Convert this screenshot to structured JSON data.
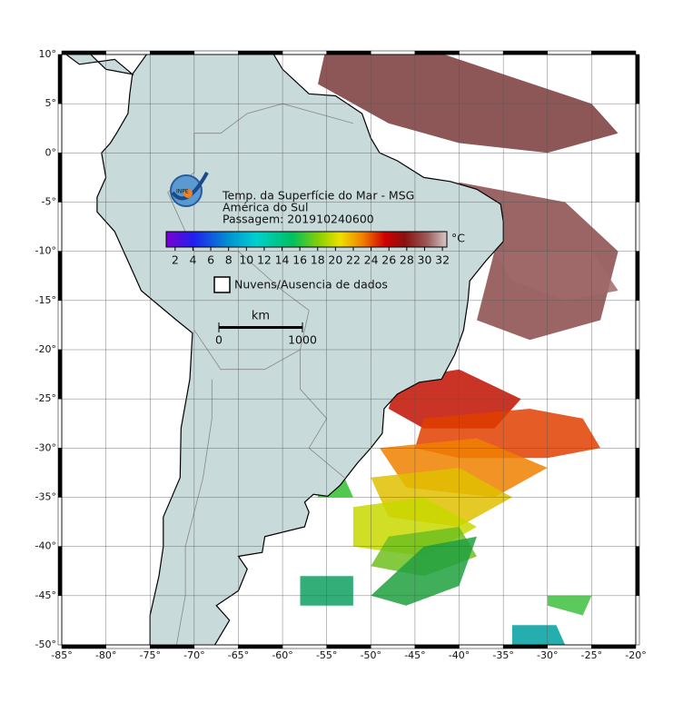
{
  "map": {
    "title_lines": [
      "Temp. da Superfície do Mar - MSG",
      "América do Sul",
      "Passagem: 201910240600"
    ],
    "logo_text": "INPE",
    "lon_range": [
      -85,
      -20
    ],
    "lat_range": [
      -50,
      10
    ],
    "lon_ticks": [
      {
        "value": -85,
        "label": "-85°"
      },
      {
        "value": -80,
        "label": "-80°"
      },
      {
        "value": -75,
        "label": "-75°"
      },
      {
        "value": -70,
        "label": "-70°"
      },
      {
        "value": -65,
        "label": "-65°"
      },
      {
        "value": -60,
        "label": "-60°"
      },
      {
        "value": -55,
        "label": "-55°"
      },
      {
        "value": -50,
        "label": "-50°"
      },
      {
        "value": -45,
        "label": "-45°"
      },
      {
        "value": -40,
        "label": "-40°"
      },
      {
        "value": -35,
        "label": "-35°"
      },
      {
        "value": -30,
        "label": "-30°"
      },
      {
        "value": -25,
        "label": "-25°"
      },
      {
        "value": -20,
        "label": "-20°"
      }
    ],
    "lat_ticks": [
      {
        "value": 10,
        "label": "10°"
      },
      {
        "value": 5,
        "label": "5°"
      },
      {
        "value": 0,
        "label": "0°"
      },
      {
        "value": -5,
        "label": "-5°"
      },
      {
        "value": -10,
        "label": "-10°"
      },
      {
        "value": -15,
        "label": "-15°"
      },
      {
        "value": -20,
        "label": "-20°"
      },
      {
        "value": -25,
        "label": "-25°"
      },
      {
        "value": -30,
        "label": "-30°"
      },
      {
        "value": -35,
        "label": "-35°"
      },
      {
        "value": -40,
        "label": "-40°"
      },
      {
        "value": -45,
        "label": "-45°"
      },
      {
        "value": -50,
        "label": "-50°"
      }
    ],
    "colorbar": {
      "range": [
        1,
        32.5
      ],
      "ticks": [
        2,
        4,
        6,
        8,
        10,
        12,
        14,
        16,
        18,
        20,
        22,
        24,
        26,
        28,
        30,
        32
      ],
      "unit": "°C"
    },
    "legend": "Nuvens/Ausencia de dados",
    "scale_bar": {
      "unit": "km",
      "ticks": [
        0,
        1000
      ]
    }
  }
}
